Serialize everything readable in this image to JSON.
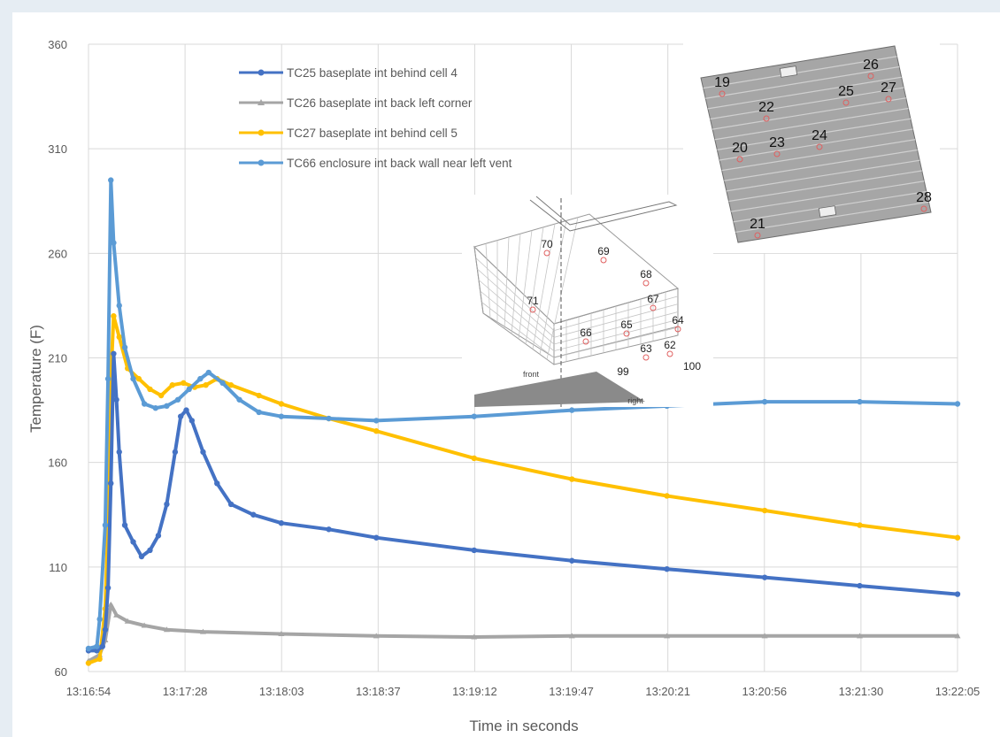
{
  "chart_data": {
    "type": "line",
    "title": "",
    "xlabel": "Time in seconds",
    "ylabel": "Temperature (F)",
    "x_ticks": [
      "13:16:54",
      "13:17:28",
      "13:18:03",
      "13:18:37",
      "13:19:12",
      "13:19:47",
      "13:20:21",
      "13:20:56",
      "13:21:30",
      "13:22:05"
    ],
    "xlim": [
      "13:16:54",
      "13:22:05"
    ],
    "y_ticks": [
      60,
      110,
      160,
      210,
      260,
      310,
      360
    ],
    "ylim": [
      60,
      360
    ],
    "grid": true,
    "legend_position": "top-center",
    "series": [
      {
        "name": "TC25 baseplate int  behind cell 4",
        "color": "#4472c4",
        "marker": "circle",
        "points": [
          [
            "13:16:54",
            70
          ],
          [
            "13:16:57",
            70
          ],
          [
            "13:16:59",
            72
          ],
          [
            "13:17:00",
            80
          ],
          [
            "13:17:01",
            100
          ],
          [
            "13:17:02",
            150
          ],
          [
            "13:17:03",
            212
          ],
          [
            "13:17:04",
            190
          ],
          [
            "13:17:05",
            165
          ],
          [
            "13:17:07",
            130
          ],
          [
            "13:17:10",
            122
          ],
          [
            "13:17:13",
            115
          ],
          [
            "13:17:16",
            118
          ],
          [
            "13:17:19",
            125
          ],
          [
            "13:17:22",
            140
          ],
          [
            "13:17:25",
            165
          ],
          [
            "13:17:27",
            182
          ],
          [
            "13:17:29",
            185
          ],
          [
            "13:17:31",
            180
          ],
          [
            "13:17:35",
            165
          ],
          [
            "13:17:40",
            150
          ],
          [
            "13:17:45",
            140
          ],
          [
            "13:17:53",
            135
          ],
          [
            "13:18:03",
            131
          ],
          [
            "13:18:20",
            128
          ],
          [
            "13:18:37",
            124
          ],
          [
            "13:19:12",
            118
          ],
          [
            "13:19:47",
            113
          ],
          [
            "13:20:21",
            109
          ],
          [
            "13:20:56",
            105
          ],
          [
            "13:21:30",
            101
          ],
          [
            "13:22:05",
            97
          ]
        ]
      },
      {
        "name": "TC26 baseplate int  back left corner",
        "color": "#a5a5a5",
        "marker": "triangle",
        "points": [
          [
            "13:16:54",
            65
          ],
          [
            "13:16:58",
            68
          ],
          [
            "13:17:00",
            75
          ],
          [
            "13:17:02",
            92
          ],
          [
            "13:17:04",
            87
          ],
          [
            "13:17:08",
            84
          ],
          [
            "13:17:14",
            82
          ],
          [
            "13:17:22",
            80
          ],
          [
            "13:17:35",
            79
          ],
          [
            "13:18:03",
            78
          ],
          [
            "13:18:37",
            77
          ],
          [
            "13:19:12",
            76.5
          ],
          [
            "13:19:47",
            77
          ],
          [
            "13:20:21",
            77
          ],
          [
            "13:20:56",
            77
          ],
          [
            "13:21:30",
            77
          ],
          [
            "13:22:05",
            77
          ]
        ]
      },
      {
        "name": "TC27 baseplate int  behind cell 5",
        "color": "#ffc000",
        "marker": "circle",
        "points": [
          [
            "13:16:54",
            64
          ],
          [
            "13:16:58",
            66
          ],
          [
            "13:17:00",
            90
          ],
          [
            "13:17:01",
            130
          ],
          [
            "13:17:02",
            200
          ],
          [
            "13:17:03",
            230
          ],
          [
            "13:17:05",
            220
          ],
          [
            "13:17:08",
            205
          ],
          [
            "13:17:12",
            200
          ],
          [
            "13:17:16",
            195
          ],
          [
            "13:17:20",
            192
          ],
          [
            "13:17:24",
            197
          ],
          [
            "13:17:28",
            198
          ],
          [
            "13:17:32",
            196
          ],
          [
            "13:17:36",
            197
          ],
          [
            "13:17:40",
            200
          ],
          [
            "13:17:45",
            197
          ],
          [
            "13:17:55",
            192
          ],
          [
            "13:18:03",
            188
          ],
          [
            "13:18:20",
            181
          ],
          [
            "13:18:37",
            175
          ],
          [
            "13:19:12",
            162
          ],
          [
            "13:19:47",
            152
          ],
          [
            "13:20:21",
            144
          ],
          [
            "13:20:56",
            137
          ],
          [
            "13:21:30",
            130
          ],
          [
            "13:22:05",
            124
          ]
        ]
      },
      {
        "name": "TC66 enclosure int  back wall near left vent",
        "color": "#5b9bd5",
        "marker": "circle",
        "points": [
          [
            "13:16:54",
            71
          ],
          [
            "13:16:57",
            72
          ],
          [
            "13:16:58",
            85
          ],
          [
            "13:17:00",
            130
          ],
          [
            "13:17:01",
            200
          ],
          [
            "13:17:02",
            295
          ],
          [
            "13:17:03",
            265
          ],
          [
            "13:17:05",
            235
          ],
          [
            "13:17:07",
            215
          ],
          [
            "13:17:10",
            200
          ],
          [
            "13:17:14",
            188
          ],
          [
            "13:17:18",
            186
          ],
          [
            "13:17:22",
            187
          ],
          [
            "13:17:26",
            190
          ],
          [
            "13:17:30",
            195
          ],
          [
            "13:17:34",
            200
          ],
          [
            "13:17:37",
            203
          ],
          [
            "13:17:42",
            198
          ],
          [
            "13:17:48",
            190
          ],
          [
            "13:17:55",
            184
          ],
          [
            "13:18:03",
            182
          ],
          [
            "13:18:20",
            181
          ],
          [
            "13:18:37",
            180
          ],
          [
            "13:19:12",
            182
          ],
          [
            "13:19:47",
            185
          ],
          [
            "13:20:21",
            187
          ],
          [
            "13:20:56",
            189
          ],
          [
            "13:21:30",
            189
          ],
          [
            "13:22:05",
            188
          ]
        ]
      }
    ]
  },
  "inset_enclosure": {
    "labels": [
      "70",
      "69",
      "68",
      "67",
      "64",
      "71",
      "66",
      "65",
      "63",
      "62",
      "99",
      "100",
      "front",
      "right"
    ]
  },
  "inset_baseplate": {
    "labels": [
      "19",
      "26",
      "22",
      "25",
      "27",
      "20",
      "23",
      "24",
      "21",
      "28"
    ]
  }
}
